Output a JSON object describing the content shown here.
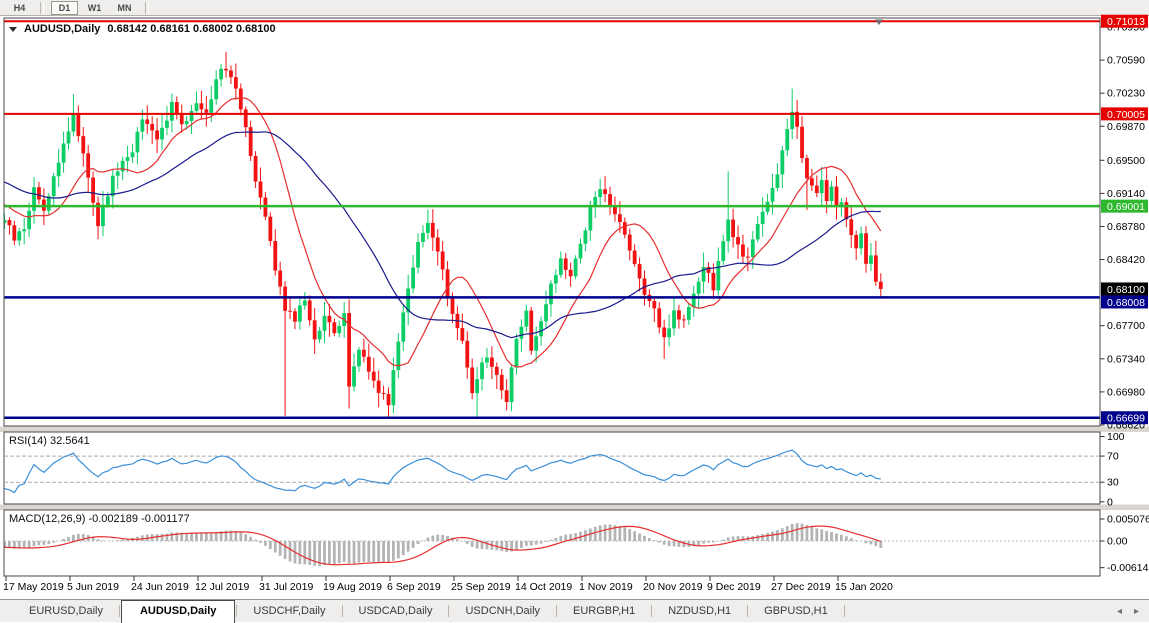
{
  "toolbar": {
    "buttons": [
      {
        "label": "H4",
        "active": false
      },
      {
        "label": "D1",
        "active": true
      },
      {
        "label": "W1",
        "active": false
      },
      {
        "label": "MN",
        "active": false
      }
    ]
  },
  "chart_header": {
    "symbol": "AUDUSD,Daily",
    "quotes": "0.68142 0.68161 0.68002 0.68100"
  },
  "indicator_labels": {
    "rsi": "RSI(14) 32.5641",
    "macd": "MACD(12,26,9) -0.002189 -0.001177"
  },
  "price_scale": {
    "ticks": [
      "0.70950",
      "0.70590",
      "0.70230",
      "0.69870",
      "0.69500",
      "0.69140",
      "0.68780",
      "0.68420",
      "0.67700",
      "0.67340",
      "0.66980",
      "0.66620"
    ],
    "badges": [
      {
        "value": "0.71013",
        "price": 0.71013,
        "color": "#e60000"
      },
      {
        "value": "0.70005",
        "price": 0.70005,
        "color": "#e60000"
      },
      {
        "value": "0.69001",
        "price": 0.69001,
        "color": "#2eb82e"
      },
      {
        "value": "0.68100",
        "price": 0.681,
        "color": "#000000"
      },
      {
        "value": "0.68008",
        "price": 0.68008,
        "color": "#00008b"
      },
      {
        "value": "0.66699",
        "price": 0.66699,
        "color": "#00008b"
      }
    ]
  },
  "rsi_scale": {
    "ticks": [
      {
        "label": "100",
        "v": 100
      },
      {
        "label": "70",
        "v": 70
      },
      {
        "label": "30",
        "v": 30
      },
      {
        "label": "0",
        "v": 0
      }
    ]
  },
  "macd_scale": {
    "ticks": [
      {
        "label": "0.005076",
        "v": 0.005076
      },
      {
        "label": "0.00",
        "v": 0
      },
      {
        "label": "-0.006148",
        "v": -0.006148
      }
    ]
  },
  "time_scale": {
    "labels": [
      "17 May 2019",
      "5 Jun 2019",
      "24 Jun 2019",
      "12 Jul 2019",
      "31 Jul 2019",
      "19 Aug 2019",
      "6 Sep 2019",
      "25 Sep 2019",
      "14 Oct 2019",
      "1 Nov 2019",
      "20 Nov 2019",
      "9 Dec 2019",
      "27 Dec 2019",
      "15 Jan 2020"
    ]
  },
  "tabs": {
    "items": [
      {
        "label": "EURUSD,Daily",
        "active": false
      },
      {
        "label": "AUDUSD,Daily",
        "active": true
      },
      {
        "label": "USDCHF,Daily",
        "active": false
      },
      {
        "label": "USDCAD,Daily",
        "active": false
      },
      {
        "label": "USDCNH,Daily",
        "active": false
      },
      {
        "label": "EURGBP,H1",
        "active": false
      },
      {
        "label": "NZDUSD,H1",
        "active": false
      },
      {
        "label": "GBPUSD,H1",
        "active": false
      }
    ],
    "scroll_left": "◂",
    "scroll_right": "▸"
  },
  "chart_data": {
    "type": "candlestick",
    "symbol": "AUDUSD",
    "timeframe": "Daily",
    "ohlc_display": {
      "open": 0.68142,
      "high": 0.68161,
      "low": 0.68002,
      "close": 0.681
    },
    "current_price": 0.681,
    "axis_top_price": 0.7095,
    "axis_bottom_price": 0.6662,
    "levels": [
      {
        "price": 0.71013,
        "color": "#e60000",
        "width": 2
      },
      {
        "price": 0.70005,
        "color": "#e60000",
        "width": 2
      },
      {
        "price": 0.69001,
        "color": "#2eb82e",
        "width": 2.5
      },
      {
        "price": 0.68008,
        "color": "#00008b",
        "width": 2.5
      },
      {
        "price": 0.66699,
        "color": "#00008b",
        "width": 2.5
      }
    ],
    "colors": {
      "bull": "#0ccd66",
      "bear": "#f21212",
      "background": "#ffffff"
    },
    "close_anchors": [
      [
        0,
        0.6885
      ],
      [
        2,
        0.6865
      ],
      [
        4,
        0.6875
      ],
      [
        6,
        0.692
      ],
      [
        8,
        0.6895
      ],
      [
        11,
        0.695
      ],
      [
        14,
        0.7
      ],
      [
        16,
        0.6958
      ],
      [
        19,
        0.688
      ],
      [
        22,
        0.6932
      ],
      [
        26,
        0.6962
      ],
      [
        28,
        0.6995
      ],
      [
        31,
        0.6972
      ],
      [
        34,
        0.701
      ],
      [
        36,
        0.6985
      ],
      [
        39,
        0.7015
      ],
      [
        41,
        0.7
      ],
      [
        43,
        0.704
      ],
      [
        45,
        0.7052
      ],
      [
        47,
        0.703
      ],
      [
        49,
        0.6988
      ],
      [
        51,
        0.693
      ],
      [
        53,
        0.6893
      ],
      [
        55,
        0.683
      ],
      [
        57,
        0.679
      ],
      [
        59,
        0.6778
      ],
      [
        61,
        0.6798
      ],
      [
        63,
        0.6758
      ],
      [
        65,
        0.6778
      ],
      [
        67,
        0.6762
      ],
      [
        69,
        0.678
      ],
      [
        70,
        0.6705
      ],
      [
        72,
        0.6748
      ],
      [
        74,
        0.6722
      ],
      [
        76,
        0.67
      ],
      [
        78,
        0.6688
      ],
      [
        80,
        0.6755
      ],
      [
        82,
        0.6812
      ],
      [
        84,
        0.6862
      ],
      [
        86,
        0.688
      ],
      [
        88,
        0.6848
      ],
      [
        90,
        0.6806
      ],
      [
        91,
        0.6782
      ],
      [
        93,
        0.6752
      ],
      [
        95,
        0.67
      ],
      [
        96,
        0.6716
      ],
      [
        98,
        0.6736
      ],
      [
        100,
        0.6716
      ],
      [
        102,
        0.6688
      ],
      [
        104,
        0.6758
      ],
      [
        106,
        0.6788
      ],
      [
        107,
        0.6742
      ],
      [
        109,
        0.6772
      ],
      [
        111,
        0.6812
      ],
      [
        113,
        0.6842
      ],
      [
        115,
        0.6826
      ],
      [
        117,
        0.6856
      ],
      [
        119,
        0.6896
      ],
      [
        121,
        0.6922
      ],
      [
        123,
        0.69
      ],
      [
        125,
        0.6882
      ],
      [
        127,
        0.6856
      ],
      [
        129,
        0.6822
      ],
      [
        130,
        0.68
      ],
      [
        132,
        0.6786
      ],
      [
        134,
        0.6756
      ],
      [
        136,
        0.6786
      ],
      [
        138,
        0.6772
      ],
      [
        140,
        0.6802
      ],
      [
        142,
        0.683
      ],
      [
        143,
        0.6828
      ],
      [
        144,
        0.6806
      ],
      [
        146,
        0.6866
      ],
      [
        147,
        0.6882
      ],
      [
        149,
        0.6856
      ],
      [
        151,
        0.6842
      ],
      [
        153,
        0.688
      ],
      [
        155,
        0.6906
      ],
      [
        157,
        0.6936
      ],
      [
        159,
        0.6986
      ],
      [
        160,
        0.7006
      ],
      [
        161,
        0.6986
      ],
      [
        162,
        0.6952
      ],
      [
        163,
        0.693
      ],
      [
        165,
        0.6916
      ],
      [
        166,
        0.6932
      ],
      [
        167,
        0.6902
      ],
      [
        168,
        0.6922
      ],
      [
        169,
        0.6896
      ],
      [
        170,
        0.6906
      ],
      [
        171,
        0.6882
      ],
      [
        172,
        0.6872
      ],
      [
        173,
        0.6856
      ],
      [
        174,
        0.6868
      ],
      [
        175,
        0.6836
      ],
      [
        176,
        0.6846
      ],
      [
        177,
        0.6822
      ],
      [
        178,
        0.681
      ]
    ],
    "wick_overrides": {
      "14": {
        "high": 0.7022
      },
      "19": {
        "low": 0.6864
      },
      "45": {
        "high": 0.7068
      },
      "57": {
        "low": 0.6672
      },
      "70": {
        "low": 0.668
      },
      "86": {
        "high": 0.6896
      },
      "96": {
        "low": 0.667
      },
      "121": {
        "high": 0.693
      },
      "134": {
        "low": 0.6734
      },
      "144": {
        "low": 0.6799
      },
      "147": {
        "high": 0.6938
      },
      "160": {
        "high": 0.7028
      },
      "163": {
        "low": 0.6896
      },
      "178": {
        "low": 0.68
      }
    },
    "prehistory": {
      "bars": 40,
      "start": 0.6985
    },
    "moving_averages": [
      {
        "period": 13,
        "color": "#e62e2e"
      },
      {
        "period": 34,
        "color": "#1a1a8c"
      }
    ],
    "rsi": {
      "period": 14,
      "value": 32.5641,
      "levels": [
        70,
        30
      ],
      "color": "#3b8fd9"
    },
    "macd": {
      "fast": 12,
      "slow": 26,
      "signal": 9,
      "macd_value": -0.002189,
      "signal_value": -0.001177,
      "bar_color": "#b4b4b4",
      "line_color": "#e62e2e"
    }
  }
}
